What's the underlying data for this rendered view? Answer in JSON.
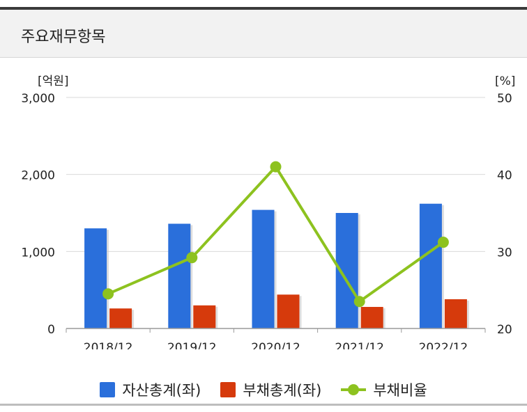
{
  "header": {
    "title": "주요재무항목"
  },
  "chart_data": {
    "type": "bar",
    "categories": [
      "2018/12",
      "2019/12",
      "2020/12",
      "2021/12",
      "2022/12"
    ],
    "y_left": {
      "unit": "[억원]",
      "range": [
        0,
        3000
      ],
      "ticks": [
        "3,000",
        "2,000",
        "1,000",
        "0"
      ],
      "tick_values": [
        3000,
        2000,
        1000,
        0
      ]
    },
    "y_right": {
      "unit": "[%]",
      "range": [
        20,
        50
      ],
      "ticks": [
        "50",
        "40",
        "30",
        "20"
      ],
      "tick_values": [
        50,
        40,
        30,
        20
      ]
    },
    "series": [
      {
        "name": "자산총계(좌)",
        "type": "bar",
        "axis": "left",
        "color": "#2a6fdb",
        "values": [
          1300,
          1360,
          1540,
          1500,
          1620
        ]
      },
      {
        "name": "부채총계(좌)",
        "type": "bar",
        "axis": "left",
        "color": "#d63a0c",
        "values": [
          260,
          300,
          440,
          280,
          380
        ]
      },
      {
        "name": "부채비율",
        "type": "line",
        "axis": "right",
        "color": "#8dc21f",
        "values": [
          24.5,
          29.2,
          41.0,
          23.5,
          31.2
        ]
      }
    ],
    "grid": true,
    "legend_position": "bottom-center"
  }
}
